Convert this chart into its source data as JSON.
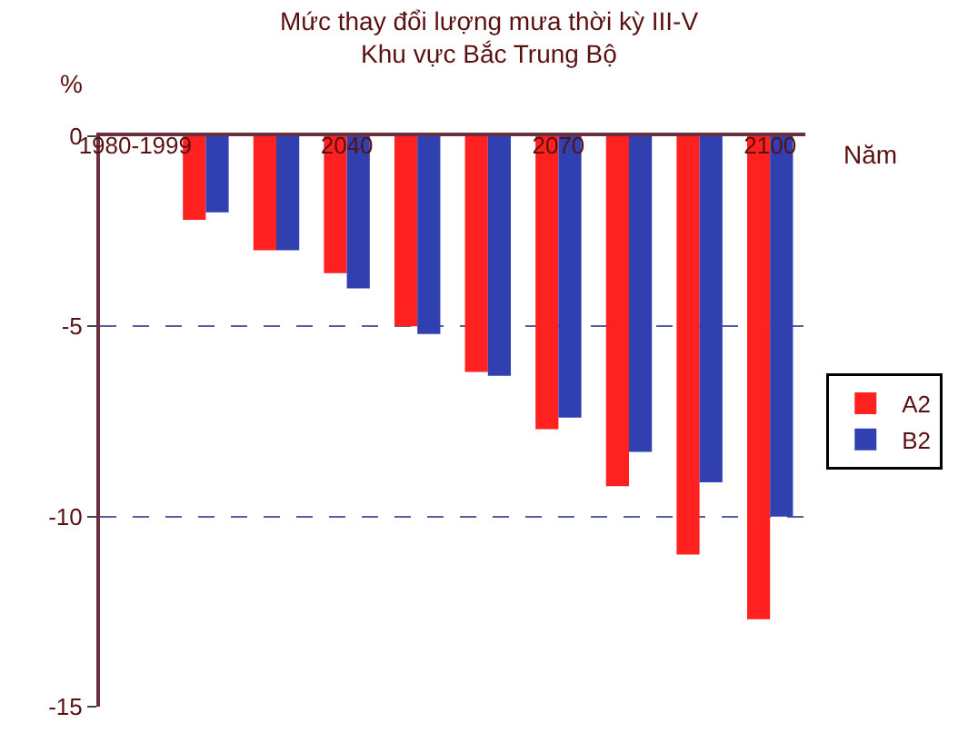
{
  "chart_data": {
    "type": "bar",
    "title": "Mức thay đổi lượng mưa thời kỳ III-V\nKhu vực Bắc Trung Bộ",
    "xlabel": "Năm",
    "ylabel": "%",
    "categories": [
      "1980-1999",
      null,
      null,
      "2040",
      null,
      null,
      "2070",
      null,
      null,
      "2100"
    ],
    "series": [
      {
        "name": "A2",
        "color": "#ff2020",
        "values": [
          0,
          -2.2,
          -3.0,
          -3.6,
          -5.0,
          -6.2,
          -7.7,
          -9.2,
          -11.0,
          -12.7
        ]
      },
      {
        "name": "B2",
        "color": "#3040b0",
        "values": [
          0,
          -2.0,
          -3.0,
          -4.0,
          -5.2,
          -6.3,
          -7.4,
          -8.3,
          -9.1,
          -10.0
        ]
      }
    ],
    "ylim": [
      -15,
      0
    ],
    "yticks": [
      0,
      -5,
      -10,
      -15
    ],
    "grid": "y",
    "legend": "right"
  }
}
